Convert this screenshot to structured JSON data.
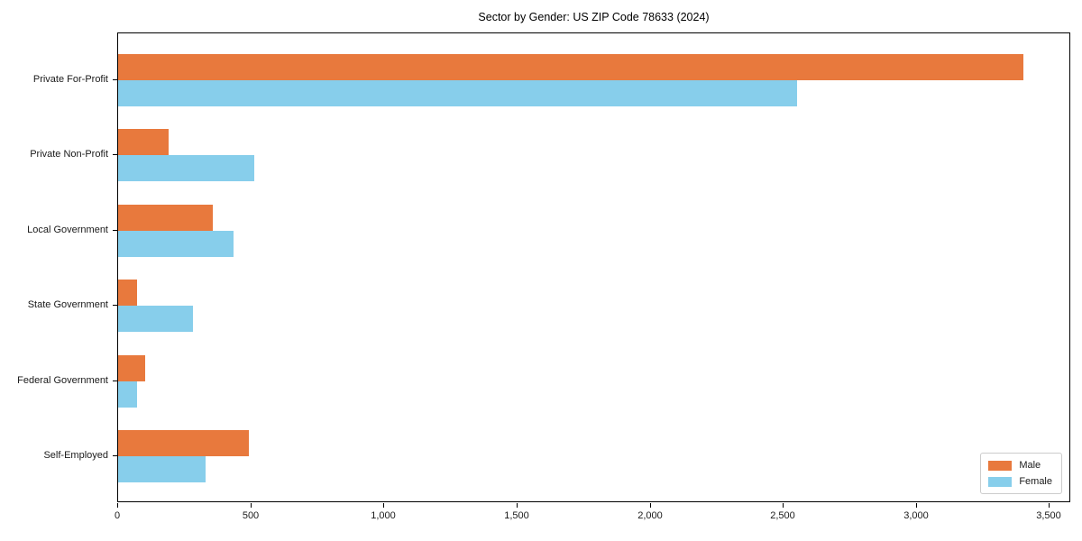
{
  "title": "Sector by Gender: US ZIP Code 78633 (2024)",
  "colors": {
    "male": "#E8793D",
    "female": "#87CEEB",
    "axis": "#000000",
    "legend_border": "#CCCCCC",
    "background": "#FFFFFF"
  },
  "chart_data": {
    "type": "bar",
    "orientation": "horizontal",
    "title": "Sector by Gender: US ZIP Code 78633 (2024)",
    "xlabel": "",
    "ylabel": "",
    "categories": [
      "Private For-Profit",
      "Private Non-Profit",
      "Local Government",
      "State Government",
      "Federal Government",
      "Self-Employed"
    ],
    "series": [
      {
        "name": "Male",
        "color": "#E8793D",
        "values": [
          3400,
          190,
          355,
          70,
          100,
          490
        ]
      },
      {
        "name": "Female",
        "color": "#87CEEB",
        "values": [
          2550,
          510,
          435,
          280,
          70,
          330
        ]
      }
    ],
    "xlim": [
      0,
      3580
    ],
    "x_ticks": [
      0,
      500,
      1000,
      1500,
      2000,
      2500,
      3000,
      3500
    ],
    "x_tick_labels": [
      "0",
      "500",
      "1,000",
      "1,500",
      "2,000",
      "2,500",
      "3,000",
      "3,500"
    ],
    "grid": false,
    "legend": {
      "position": "lower right",
      "entries": [
        "Male",
        "Female"
      ]
    }
  }
}
